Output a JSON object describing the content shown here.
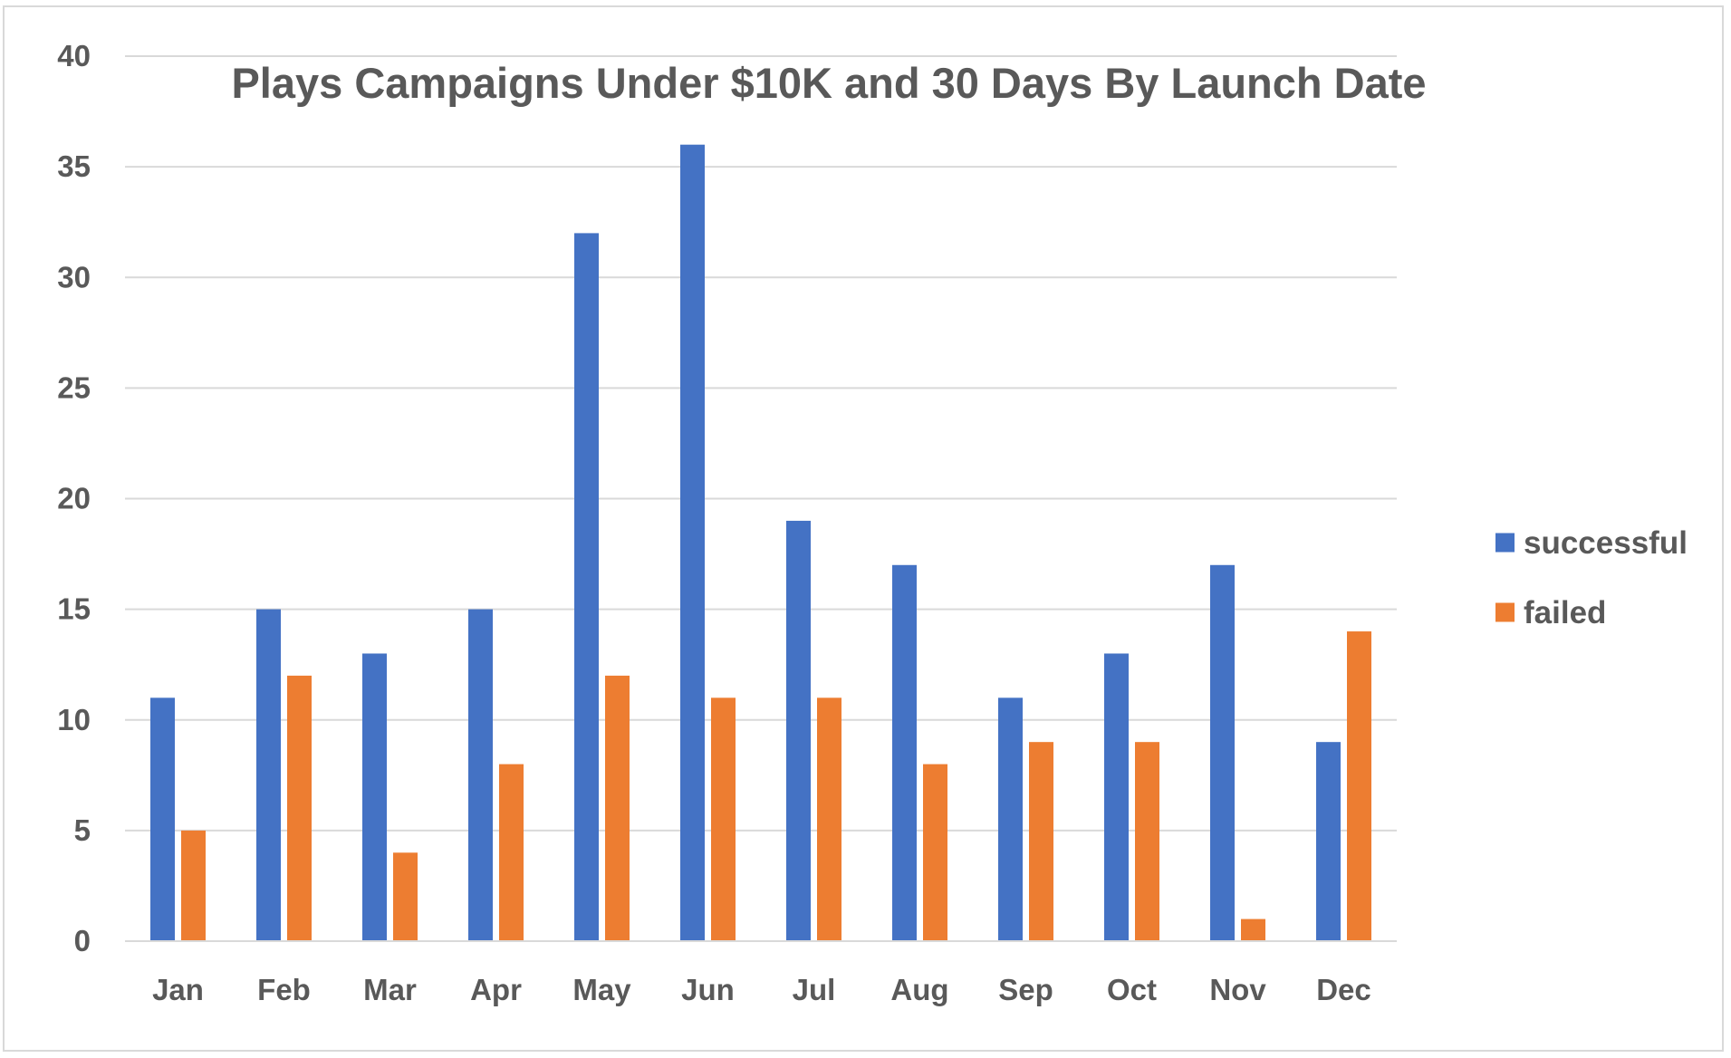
{
  "chart_data": {
    "type": "bar",
    "title": "Plays Campaigns Under $10K and 30 Days By Launch Date",
    "xlabel": "",
    "ylabel": "",
    "categories": [
      "Jan",
      "Feb",
      "Mar",
      "Apr",
      "May",
      "Jun",
      "Jul",
      "Aug",
      "Sep",
      "Oct",
      "Nov",
      "Dec"
    ],
    "series": [
      {
        "name": "successful",
        "color": "#4472c4",
        "values": [
          11,
          15,
          13,
          15,
          32,
          36,
          19,
          17,
          11,
          13,
          17,
          9
        ]
      },
      {
        "name": "failed",
        "color": "#ed7d31",
        "values": [
          5,
          12,
          4,
          8,
          12,
          11,
          11,
          8,
          9,
          9,
          1,
          14
        ]
      }
    ],
    "ylim": [
      0,
      40
    ],
    "yticks": [
      0,
      5,
      10,
      15,
      20,
      25,
      30,
      35,
      40
    ],
    "grid": true,
    "legend_position": "right"
  }
}
